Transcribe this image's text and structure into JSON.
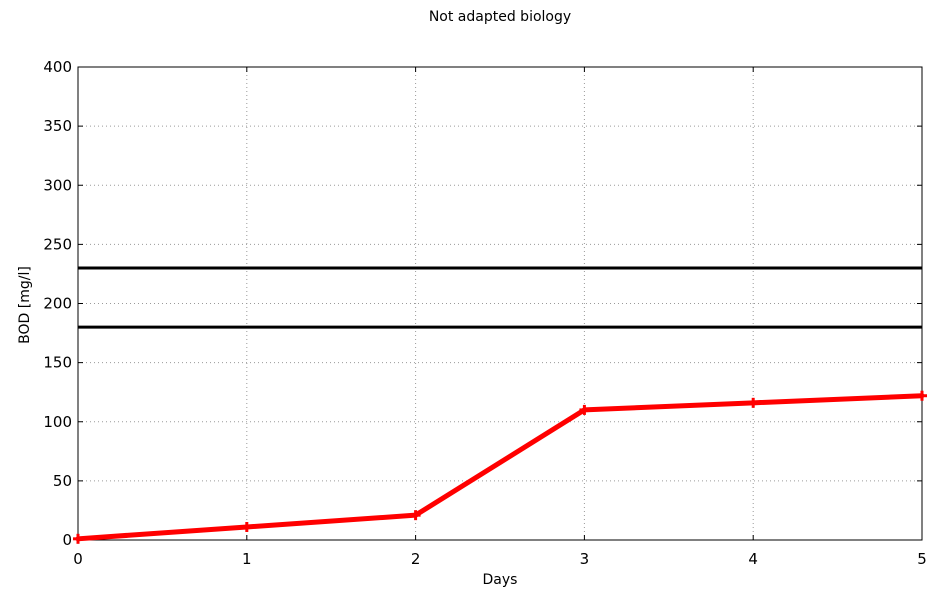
{
  "chart_data": {
    "type": "line",
    "title": "Not adapted biology",
    "xlabel": "Days",
    "ylabel": "BOD  [mg/l]",
    "xlim": [
      0,
      5
    ],
    "ylim": [
      0,
      400
    ],
    "x_ticks": [
      0,
      1,
      2,
      3,
      4,
      5
    ],
    "y_ticks": [
      0,
      50,
      100,
      150,
      200,
      250,
      300,
      350,
      400
    ],
    "grid": true,
    "series": [
      {
        "x": [
          0,
          1,
          2,
          3,
          4,
          5
        ],
        "y": [
          1,
          11,
          21,
          110,
          116,
          122
        ],
        "color": "#ff0000",
        "marker": "plus"
      }
    ],
    "reference_lines": [
      {
        "y": 230,
        "color": "#000000"
      },
      {
        "y": 180,
        "color": "#000000"
      }
    ]
  }
}
